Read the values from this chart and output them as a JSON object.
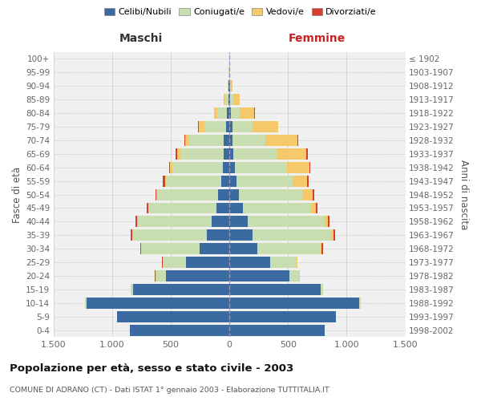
{
  "age_groups": [
    "0-4",
    "5-9",
    "10-14",
    "15-19",
    "20-24",
    "25-29",
    "30-34",
    "35-39",
    "40-44",
    "45-49",
    "50-54",
    "55-59",
    "60-64",
    "65-69",
    "70-74",
    "75-79",
    "80-84",
    "85-89",
    "90-94",
    "95-99",
    "100+"
  ],
  "birth_years": [
    "1998-2002",
    "1993-1997",
    "1988-1992",
    "1983-1987",
    "1978-1982",
    "1973-1977",
    "1968-1972",
    "1963-1967",
    "1958-1962",
    "1953-1957",
    "1948-1952",
    "1943-1947",
    "1938-1942",
    "1933-1937",
    "1928-1932",
    "1923-1927",
    "1918-1922",
    "1913-1917",
    "1908-1912",
    "1903-1907",
    "≤ 1902"
  ],
  "males": {
    "celibi": [
      850,
      960,
      1220,
      820,
      540,
      370,
      250,
      190,
      150,
      110,
      95,
      70,
      55,
      50,
      45,
      30,
      20,
      8,
      5,
      2,
      1
    ],
    "coniugati": [
      0,
      0,
      8,
      18,
      85,
      195,
      500,
      635,
      630,
      580,
      520,
      470,
      430,
      370,
      295,
      185,
      80,
      25,
      8,
      2,
      0
    ],
    "vedovi": [
      0,
      0,
      0,
      4,
      4,
      4,
      4,
      4,
      4,
      4,
      4,
      9,
      18,
      28,
      38,
      45,
      28,
      12,
      4,
      1,
      0
    ],
    "divorziati": [
      0,
      0,
      0,
      0,
      4,
      4,
      8,
      13,
      18,
      8,
      8,
      18,
      8,
      8,
      8,
      4,
      4,
      0,
      0,
      0,
      0
    ]
  },
  "females": {
    "nubili": [
      810,
      910,
      1110,
      780,
      510,
      350,
      240,
      200,
      160,
      115,
      85,
      60,
      50,
      35,
      30,
      25,
      12,
      8,
      4,
      1,
      0
    ],
    "coniugate": [
      0,
      0,
      8,
      18,
      85,
      225,
      540,
      670,
      650,
      580,
      540,
      480,
      440,
      370,
      280,
      170,
      75,
      25,
      8,
      2,
      0
    ],
    "vedove": [
      0,
      0,
      0,
      0,
      4,
      4,
      8,
      18,
      28,
      45,
      85,
      125,
      190,
      250,
      270,
      220,
      125,
      55,
      18,
      4,
      0
    ],
    "divorziate": [
      0,
      0,
      0,
      0,
      4,
      4,
      8,
      13,
      18,
      13,
      13,
      13,
      13,
      13,
      8,
      4,
      4,
      0,
      0,
      0,
      0
    ]
  },
  "colors": {
    "celibi_nubili": "#3a6aa0",
    "coniugati": "#c8ddb0",
    "vedovi": "#f5c869",
    "divorziati": "#d93d2b"
  },
  "title": "Popolazione per età, sesso e stato civile - 2003",
  "subtitle": "COMUNE DI ADRANO (CT) - Dati ISTAT 1° gennaio 2003 - Elaborazione TUTTITALIA.IT",
  "label_maschi": "Maschi",
  "label_femmine": "Femmine",
  "ylabel_left": "Fasce di età",
  "ylabel_right": "Anni di nascita",
  "xlim": 1500,
  "tick_vals": [
    -1500,
    -1000,
    -500,
    0,
    500,
    1000,
    1500
  ],
  "tick_labels": [
    "1.500",
    "1.000",
    "500",
    "0",
    "500",
    "1.000",
    "1.500"
  ],
  "legend_labels": [
    "Celibi/Nubili",
    "Coniugati/e",
    "Vedovi/e",
    "Divorziati/e"
  ],
  "bg_color": "#ffffff",
  "plot_bg_color": "#f0f0f0",
  "grid_color": "#cccccc"
}
